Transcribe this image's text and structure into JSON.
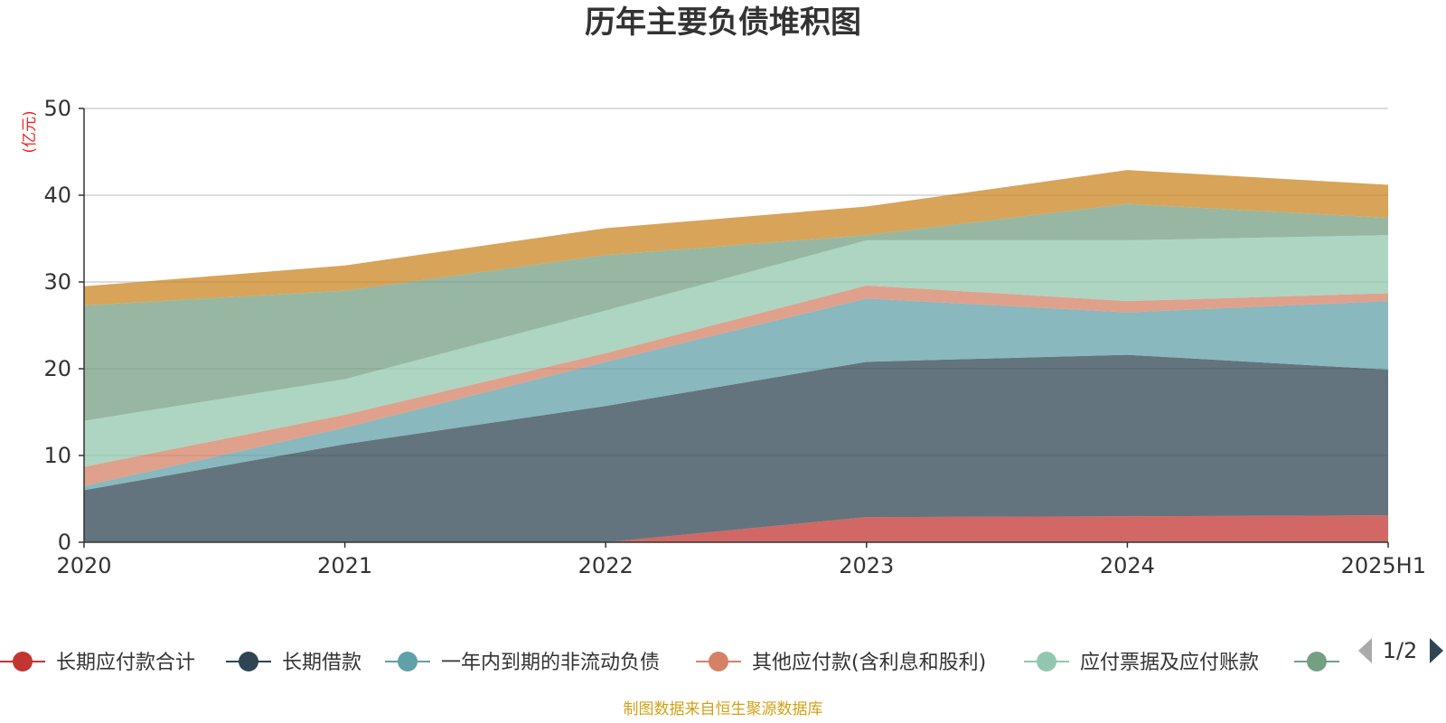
{
  "chart_data": {
    "type": "area",
    "title": "历年主要负债堆积图",
    "ylabel": "(亿元)",
    "categories": [
      "2020",
      "2021",
      "2022",
      "2023",
      "2024",
      "2025H1"
    ],
    "ylim": [
      0,
      50
    ],
    "yticks": [
      0,
      10,
      20,
      30,
      40,
      50
    ],
    "stacked": true,
    "grid": true,
    "series": [
      {
        "name": "长期应付款合计",
        "color": "#c23531",
        "values": [
          0,
          0,
          0,
          2.9,
          3.0,
          3.1
        ]
      },
      {
        "name": "长期借款",
        "color": "#2f4554",
        "values": [
          6.0,
          11.3,
          15.7,
          17.9,
          18.6,
          16.8
        ]
      },
      {
        "name": "一年内到期的非流动负债",
        "color": "#61a0a8",
        "values": [
          0.5,
          1.9,
          5.1,
          7.3,
          4.9,
          7.9
        ]
      },
      {
        "name": "其他应付款(含利息和股利)",
        "color": "#d48265",
        "values": [
          2.2,
          1.5,
          1.0,
          1.5,
          1.3,
          0.9
        ]
      },
      {
        "name": "应付票据及应付账款",
        "color": "#91c7ae",
        "values": [
          5.3,
          4.1,
          4.9,
          5.2,
          7.0,
          6.7
        ]
      },
      {
        "name": "",
        "color": "#749f83",
        "values": [
          13.3,
          10.2,
          6.4,
          0.6,
          4.2,
          2.0
        ]
      },
      {
        "name": "",
        "color": "#ca8622",
        "values": [
          2.2,
          2.9,
          3.1,
          3.3,
          3.9,
          3.8
        ]
      }
    ]
  },
  "legend": {
    "page": "1/2",
    "visible_count": 6
  },
  "source_note": "制图数据来自恒生聚源数据库"
}
